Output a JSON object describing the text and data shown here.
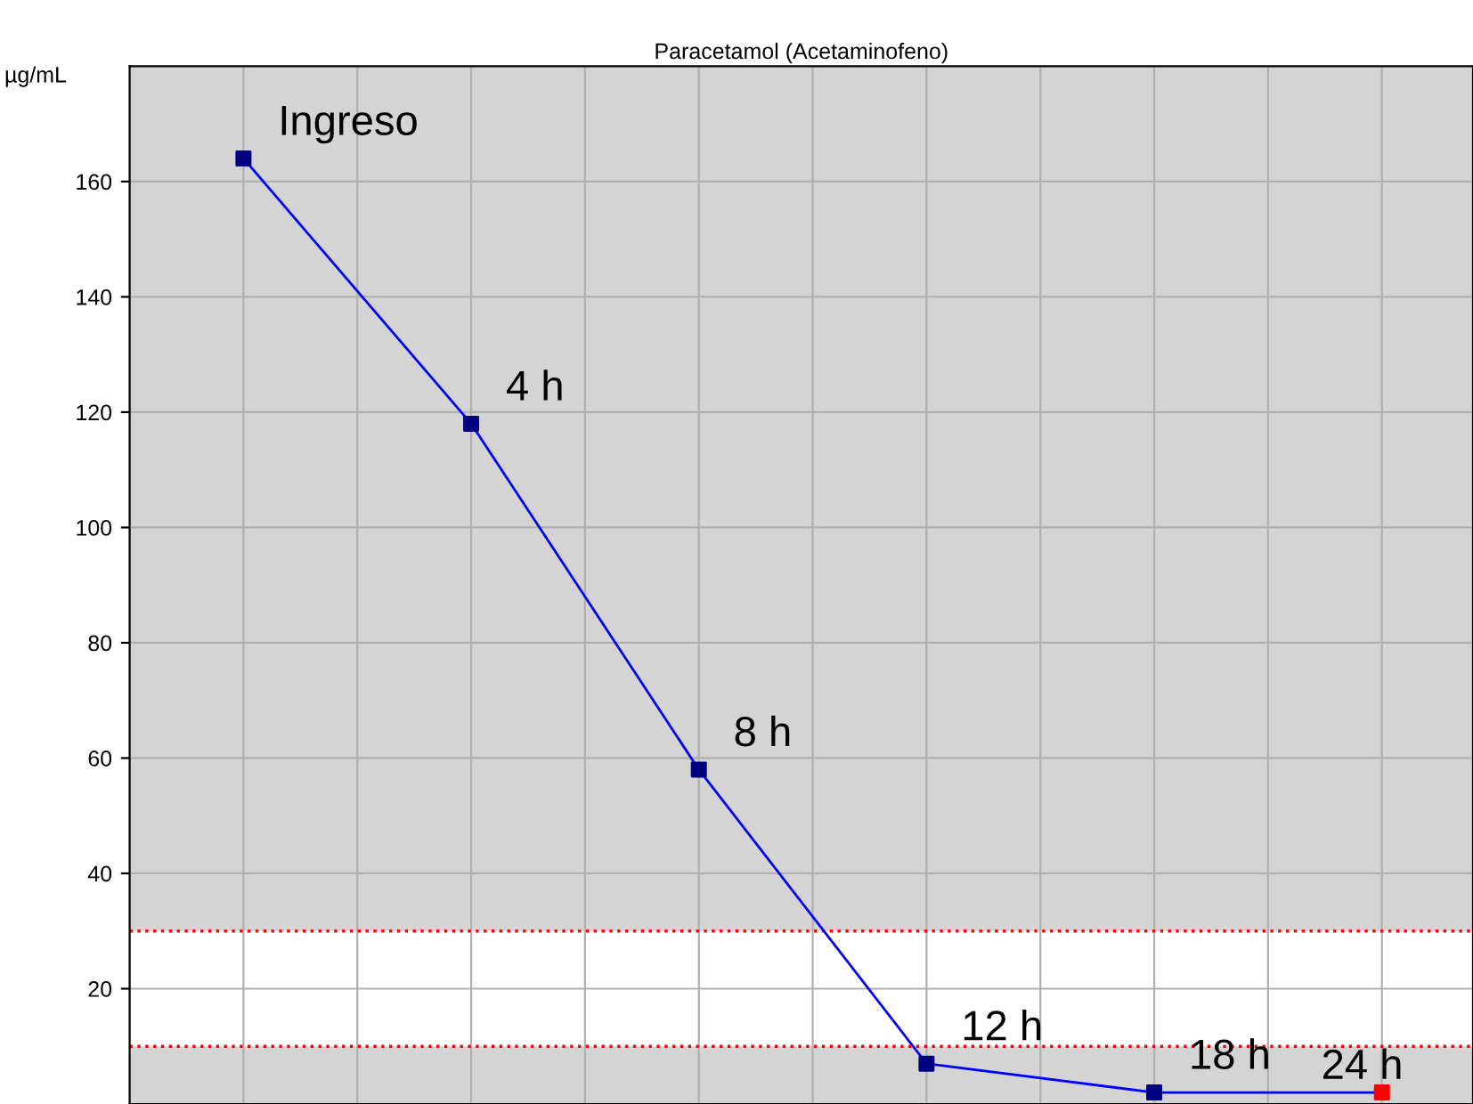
{
  "chart_data": {
    "type": "line",
    "title": "Paracetamol (Acetaminofeno)",
    "ylabel": "µg/mL",
    "categories": [
      null,
      null,
      null,
      null,
      null,
      null
    ],
    "series": [
      {
        "color": "#0000ff",
        "colors": [
          "#000080",
          "#000080",
          "#000080",
          "#000080",
          "#000080",
          "#ff0000"
        ],
        "values": [
          164,
          118,
          58,
          7,
          2,
          2
        ]
      }
    ],
    "annotations": [
      "Ingreso",
      "4 h",
      "8 h",
      "12 h",
      "18 h",
      "24 h"
    ],
    "ylim": [
      0,
      180
    ],
    "yticks": [
      20,
      40,
      60,
      80,
      100,
      120,
      140,
      160
    ],
    "bands": [
      {
        "axis": "y",
        "from": 10,
        "to": 30,
        "color": "#ffffff"
      }
    ],
    "ref_lines": [
      {
        "axis": "y",
        "value": 10,
        "color": "#ff0000",
        "line_style": "dotted"
      },
      {
        "axis": "y",
        "value": 30,
        "color": "#ff0000",
        "line_style": "dotted"
      }
    ],
    "grid": true,
    "marker": "square",
    "line_style": "solid"
  }
}
